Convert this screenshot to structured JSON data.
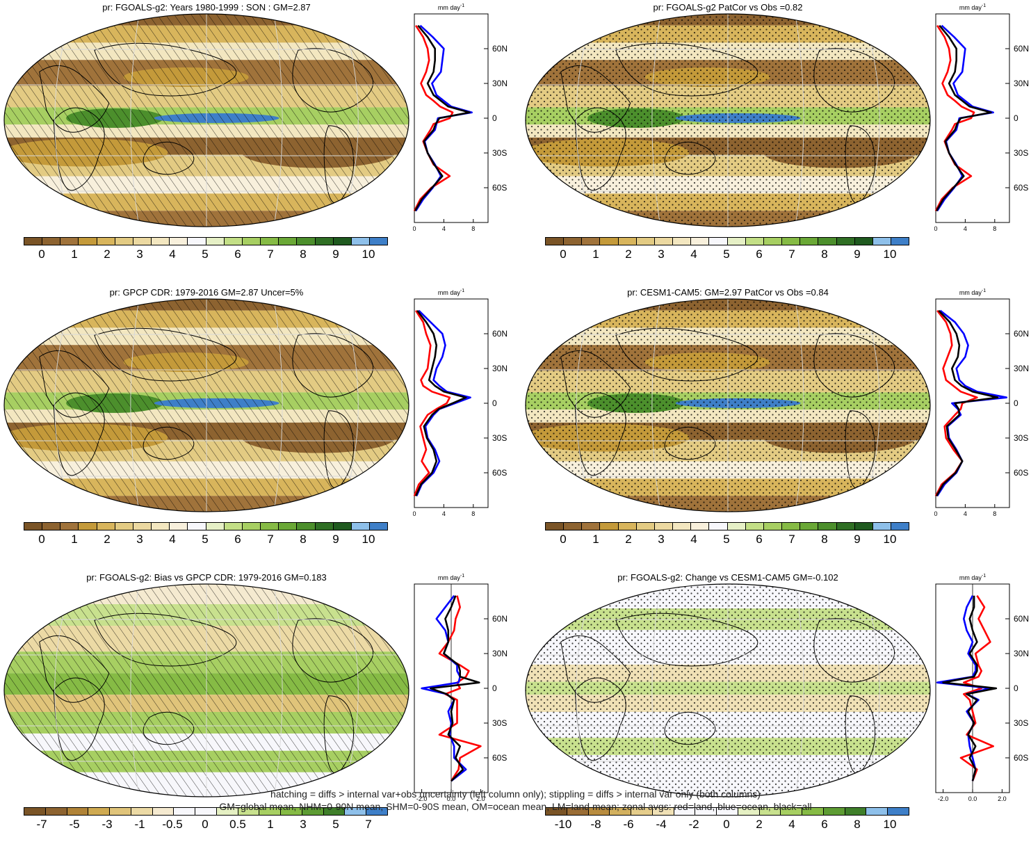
{
  "panels": [
    {
      "id": "p1",
      "title": "pr: FGOALS-g2: Years 1980-1999 : SON : GM=2.87",
      "marking": "hatch",
      "palette": "abs",
      "colorbar_labels": [
        "0",
        "1",
        "2",
        "3",
        "4",
        "5",
        "6",
        "7",
        "8",
        "9",
        "10"
      ],
      "zonal": {
        "unit": "mm day",
        "unit_exp": "-1",
        "xticks": [
          "0",
          "4",
          "8"
        ],
        "xlim": [
          0,
          10
        ]
      }
    },
    {
      "id": "p2",
      "title": "pr: FGOALS-g2 PatCor vs Obs =0.82",
      "marking": "stipple",
      "palette": "abs",
      "colorbar_labels": [
        "0",
        "1",
        "2",
        "3",
        "4",
        "5",
        "6",
        "7",
        "8",
        "9",
        "10"
      ],
      "zonal": {
        "unit": "mm day",
        "unit_exp": "-1",
        "xticks": [
          "0",
          "4",
          "8"
        ],
        "xlim": [
          0,
          10
        ]
      }
    },
    {
      "id": "p3",
      "title": "pr: GPCP CDR: 1979-2016 GM=2.87 Uncer=5%",
      "marking": "hatch",
      "palette": "abs",
      "colorbar_labels": [
        "0",
        "1",
        "2",
        "3",
        "4",
        "5",
        "6",
        "7",
        "8",
        "9",
        "10"
      ],
      "zonal": {
        "unit": "mm day",
        "unit_exp": "-1",
        "xticks": [
          "0",
          "4",
          "8"
        ],
        "xlim": [
          0,
          10
        ]
      }
    },
    {
      "id": "p4",
      "title": "pr: CESM1-CAM5: GM=2.97 PatCor vs Obs =0.84",
      "marking": "stipple",
      "palette": "abs",
      "colorbar_labels": [
        "0",
        "1",
        "2",
        "3",
        "4",
        "5",
        "6",
        "7",
        "8",
        "9",
        "10"
      ],
      "zonal": {
        "unit": "mm day",
        "unit_exp": "-1",
        "xticks": [
          "0",
          "4",
          "8"
        ],
        "xlim": [
          0,
          10
        ]
      }
    },
    {
      "id": "p5",
      "title": "pr: FGOALS-g2: Bias vs GPCP CDR: 1979-2016  GM=0.183",
      "marking": "hatch",
      "palette": "bias",
      "colorbar_labels": [
        "-7",
        "-5",
        "-3",
        "-1",
        "-0.5",
        "0",
        "0.5",
        "1",
        "3",
        "5",
        "7"
      ],
      "zonal": {
        "unit": "mm day",
        "unit_exp": "-1",
        "xticks": [
          "-2.0",
          "0.0",
          "2.0"
        ],
        "xlim": [
          -2.5,
          2.5
        ]
      }
    },
    {
      "id": "p6",
      "title": "pr: FGOALS-g2: Change vs CESM1-CAM5 GM=-0.102",
      "marking": "stipple",
      "palette": "change",
      "colorbar_labels": [
        "-10",
        "-8",
        "-6",
        "-4",
        "-2",
        "0",
        "2",
        "4",
        "6",
        "8",
        "10"
      ],
      "zonal": {
        "unit": "mm day",
        "unit_exp": "-1",
        "xticks": [
          "-2.0",
          "0.0",
          "2.0"
        ],
        "xlim": [
          -2.5,
          2.5
        ]
      }
    }
  ],
  "lat_ticks": [
    "60N",
    "30N",
    "0",
    "30S",
    "60S"
  ],
  "colors": {
    "land": "#ff0000",
    "ocean": "#0000ff",
    "all": "#000000",
    "palette_abs": [
      "#7a5426",
      "#8d6330",
      "#a0733b",
      "#c49a3a",
      "#d8b55c",
      "#e3cb83",
      "#ecd9a1",
      "#f3e7c0",
      "#f8f0dc",
      "#f7f7fb",
      "#e6f0c6",
      "#c3df86",
      "#a7cf62",
      "#86bb45",
      "#6aa836",
      "#4c8f2c",
      "#2f6f24",
      "#1f5a1f",
      "#8ec0ea",
      "#3e7fc8"
    ],
    "palette_bias": [
      "#7a5426",
      "#8d6330",
      "#b08337",
      "#cfaa51",
      "#e0c47a",
      "#ecdaa5",
      "#f5ead0",
      "#f7f7fb",
      "#f7f7fb",
      "#e5f0c3",
      "#c8e18e",
      "#a7cf62",
      "#86bb45",
      "#5d9c33",
      "#3f7f2a",
      "#8ec0ea",
      "#3e7fc8"
    ],
    "palette_change": [
      "#7a5426",
      "#9a6d35",
      "#b88c3f",
      "#d3b15f",
      "#e5cd8b",
      "#f0e1b6",
      "#f7f7fb",
      "#f7f7fb",
      "#f7f7fb",
      "#e5f0c3",
      "#c8e18e",
      "#a7cf62",
      "#86bb45",
      "#5d9c33",
      "#3f7f2a",
      "#8ec0ea",
      "#3e7fc8"
    ]
  },
  "chart_data": [
    {
      "type": "line",
      "title": "pr: FGOALS-g2: Years 1980-1999 : SON : GM=2.87",
      "ylabel": "mm day-1",
      "lat": [
        -80,
        -70,
        -60,
        -50,
        -40,
        -30,
        -20,
        -10,
        -5,
        0,
        5,
        10,
        15,
        20,
        30,
        40,
        50,
        60,
        70,
        80
      ],
      "series": [
        {
          "color": "red",
          "values": [
            0,
            0.8,
            2.3,
            4.8,
            2.6,
            1.8,
            1.2,
            2.2,
            2.6,
            4.8,
            5.2,
            3.5,
            2.6,
            1.6,
            0.9,
            1.6,
            2.0,
            1.8,
            1.2,
            0.2
          ]
        },
        {
          "color": "blue",
          "values": [
            0.2,
            1.2,
            2.5,
            3.6,
            2.8,
            1.8,
            1.4,
            2.8,
            3.0,
            3.2,
            7.8,
            5.0,
            4.0,
            3.0,
            2.4,
            3.6,
            3.8,
            4.0,
            2.5,
            0.8
          ]
        },
        {
          "color": "black",
          "values": [
            0.1,
            1.0,
            2.4,
            3.8,
            2.7,
            1.8,
            1.3,
            2.6,
            2.9,
            3.4,
            7.5,
            4.6,
            3.6,
            2.6,
            1.8,
            2.6,
            2.8,
            2.8,
            1.8,
            0.5
          ]
        }
      ]
    },
    {
      "type": "line",
      "title": "pr: FGOALS-g2 PatCor vs Obs =0.82",
      "ylabel": "mm day-1",
      "lat": [
        -80,
        -70,
        -60,
        -50,
        -40,
        -30,
        -20,
        -10,
        -5,
        0,
        5,
        10,
        15,
        20,
        30,
        40,
        50,
        60,
        70,
        80
      ],
      "series": [
        {
          "color": "red",
          "values": [
            0,
            0.8,
            2.3,
            4.8,
            2.6,
            1.8,
            1.2,
            2.2,
            2.6,
            4.8,
            5.2,
            3.5,
            2.6,
            1.6,
            0.9,
            1.6,
            2.0,
            1.8,
            1.2,
            0.2
          ]
        },
        {
          "color": "blue",
          "values": [
            0.2,
            1.2,
            2.5,
            3.6,
            2.8,
            1.8,
            1.4,
            2.8,
            3.0,
            3.2,
            7.8,
            5.0,
            4.0,
            3.0,
            2.4,
            3.6,
            3.8,
            4.0,
            2.5,
            0.8
          ]
        },
        {
          "color": "black",
          "values": [
            0.1,
            1.0,
            2.4,
            3.8,
            2.7,
            1.8,
            1.3,
            2.6,
            2.9,
            3.4,
            7.5,
            4.6,
            3.6,
            2.6,
            1.8,
            2.6,
            2.8,
            2.8,
            1.8,
            0.5
          ]
        }
      ]
    },
    {
      "type": "line",
      "title": "pr: GPCP CDR: 1979-2016 GM=2.87 Uncer=5%",
      "ylabel": "mm day-1",
      "lat": [
        -80,
        -70,
        -60,
        -50,
        -40,
        -30,
        -20,
        -10,
        -5,
        0,
        5,
        10,
        15,
        20,
        30,
        40,
        50,
        60,
        70,
        80
      ],
      "series": [
        {
          "color": "red",
          "values": [
            0,
            0.6,
            2.0,
            1.0,
            1.6,
            1.2,
            0.8,
            1.8,
            3.0,
            4.4,
            4.8,
            2.4,
            1.2,
            0.9,
            1.8,
            2.0,
            2.2,
            1.6,
            1.2,
            0.2
          ]
        },
        {
          "color": "blue",
          "values": [
            0.3,
            1.0,
            2.6,
            3.4,
            2.8,
            1.8,
            1.5,
            2.6,
            3.4,
            5.5,
            7.6,
            4.4,
            3.4,
            2.6,
            3.0,
            3.8,
            4.2,
            3.8,
            2.2,
            0.6
          ]
        },
        {
          "color": "black",
          "values": [
            0.2,
            0.9,
            2.4,
            3.0,
            2.6,
            1.7,
            1.3,
            2.4,
            3.3,
            5.2,
            7.0,
            4.0,
            2.8,
            2.0,
            2.4,
            2.8,
            3.0,
            2.6,
            1.6,
            0.4
          ]
        }
      ]
    },
    {
      "type": "line",
      "title": "pr: CESM1-CAM5: GM=2.97 PatCor vs Obs =0.84",
      "ylabel": "mm day-1",
      "lat": [
        -80,
        -70,
        -60,
        -50,
        -40,
        -30,
        -20,
        -10,
        -5,
        0,
        5,
        10,
        15,
        20,
        30,
        40,
        50,
        60,
        70,
        80
      ],
      "series": [
        {
          "color": "red",
          "values": [
            0,
            0.8,
            2.6,
            3.6,
            2.4,
            1.4,
            1.2,
            2.6,
            3.4,
            3.6,
            5.6,
            3.4,
            2.4,
            1.4,
            1.0,
            1.6,
            2.2,
            2.0,
            1.4,
            0.2
          ]
        },
        {
          "color": "blue",
          "values": [
            0.2,
            1.2,
            2.8,
            3.6,
            2.8,
            1.8,
            1.6,
            3.4,
            3.0,
            2.2,
            9.6,
            5.6,
            4.0,
            3.2,
            2.8,
            4.0,
            4.4,
            3.8,
            2.6,
            0.6
          ]
        },
        {
          "color": "black",
          "values": [
            0.1,
            1.0,
            2.7,
            3.6,
            2.7,
            1.7,
            1.5,
            3.2,
            3.1,
            2.6,
            8.4,
            5.0,
            3.5,
            2.6,
            2.2,
            3.0,
            3.2,
            2.8,
            1.9,
            0.4
          ]
        }
      ]
    },
    {
      "type": "line",
      "title": "pr: FGOALS-g2: Bias vs GPCP CDR: 1979-2016  GM=0.183",
      "ylabel": "mm day-1",
      "lat": [
        -80,
        -70,
        -60,
        -50,
        -40,
        -30,
        -20,
        -10,
        -5,
        0,
        5,
        10,
        15,
        20,
        30,
        40,
        50,
        60,
        70,
        80
      ],
      "series": [
        {
          "color": "red",
          "values": [
            0,
            0.5,
            0.6,
            2.0,
            -0.8,
            0.4,
            0.4,
            0.4,
            -0.4,
            0.6,
            0.4,
            1.0,
            1.2,
            0.6,
            -0.8,
            -0.2,
            0.2,
            0.3,
            0.6,
            0.4
          ]
        },
        {
          "color": "blue",
          "values": [
            0,
            1.0,
            0.2,
            0.2,
            -0.1,
            0.0,
            -0.2,
            0.2,
            -0.3,
            -2.0,
            0.5,
            0.6,
            0.4,
            0.4,
            -0.5,
            -0.2,
            -0.4,
            -1.0,
            -0.4,
            0.2
          ]
        },
        {
          "color": "black",
          "values": [
            0,
            0.8,
            0.3,
            0.6,
            -0.2,
            0.1,
            0.0,
            0.2,
            -0.3,
            -1.4,
            1.9,
            0.6,
            0.6,
            0.5,
            -0.5,
            -0.2,
            -0.2,
            -0.4,
            0.0,
            0.3
          ]
        }
      ]
    },
    {
      "type": "line",
      "title": "pr: FGOALS-g2: Change vs CESM1-CAM5 GM=-0.102",
      "ylabel": "mm day-1",
      "lat": [
        -80,
        -70,
        -60,
        -50,
        -40,
        -30,
        -20,
        -10,
        -5,
        0,
        5,
        10,
        15,
        20,
        30,
        40,
        50,
        60,
        70,
        80
      ],
      "series": [
        {
          "color": "red",
          "values": [
            0,
            0.3,
            -0.8,
            1.4,
            -0.4,
            0.2,
            0.0,
            -0.2,
            -0.6,
            0.6,
            -0.6,
            0.4,
            0.6,
            0.4,
            0.2,
            1.2,
            0.8,
            0.4,
            0.8,
            0.3
          ]
        },
        {
          "color": "blue",
          "values": [
            0,
            0.2,
            0.0,
            -0.2,
            -0.3,
            0.1,
            -0.4,
            0.4,
            -0.4,
            1.2,
            -2.4,
            0.0,
            0.2,
            0.2,
            -0.3,
            0.0,
            -0.4,
            -0.6,
            -0.4,
            0.0
          ]
        },
        {
          "color": "black",
          "values": [
            0,
            0.2,
            -0.2,
            0.2,
            -0.3,
            0.1,
            -0.3,
            0.3,
            -0.4,
            1.6,
            -2.0,
            0.1,
            0.3,
            0.3,
            -0.2,
            0.3,
            0.0,
            -0.2,
            0.1,
            0.1
          ]
        }
      ]
    }
  ],
  "footer": {
    "line1": "hatching = diffs > internal var+obs uncertainty (left column only); stippling = diffs > internal var only (both columns)",
    "line2": "GM=global mean, NHM=0-90N mean, SHM=0-90S mean, OM=ocean mean, LM=land mean; zonal avgs: red=land, blue=ocean, black=all"
  }
}
